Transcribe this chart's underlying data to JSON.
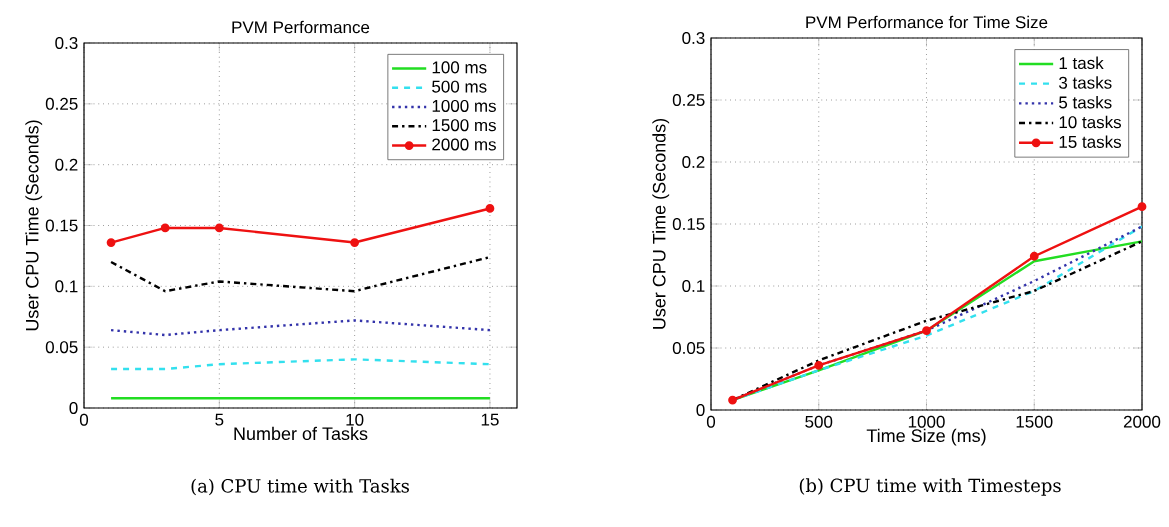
{
  "chart_data": [
    {
      "type": "line",
      "title": "PVM Performance",
      "xlabel": "Number of Tasks",
      "ylabel": "User CPU Time (Seconds)",
      "x": [
        1,
        3,
        5,
        10,
        15
      ],
      "xlim": [
        0,
        16
      ],
      "xticks": [
        0,
        5,
        10,
        15
      ],
      "ylim": [
        0,
        0.3
      ],
      "yticks": [
        0,
        0.05,
        0.1,
        0.15,
        0.2,
        0.25,
        0.3
      ],
      "grid": true,
      "legend": "top right",
      "annotations": [
        "(a) CPU time with Tasks"
      ],
      "series": [
        {
          "name": "100 ms",
          "color": "#22dd22",
          "line_style": "solid",
          "values": [
            0.008,
            0.008,
            0.008,
            0.008,
            0.008
          ]
        },
        {
          "name": "500 ms",
          "color": "#33e0ee",
          "line_style": "dashed",
          "values": [
            0.032,
            0.032,
            0.036,
            0.04,
            0.036
          ]
        },
        {
          "name": "1000 ms",
          "color": "#3333aa",
          "line_style": "dotted",
          "values": [
            0.064,
            0.06,
            0.064,
            0.072,
            0.064
          ]
        },
        {
          "name": "1500 ms",
          "color": "#000000",
          "line_style": "dashdot",
          "values": [
            0.12,
            0.096,
            0.104,
            0.096,
            0.124
          ]
        },
        {
          "name": "2000 ms",
          "color": "#ee1111",
          "line_style": "solid",
          "marker": "star",
          "values": [
            0.136,
            0.148,
            0.148,
            0.136,
            0.164
          ]
        }
      ]
    },
    {
      "type": "line",
      "title": "PVM Performance for Time Size",
      "xlabel": "Time Size (ms)",
      "ylabel": "User CPU Time (Seconds)",
      "x": [
        100,
        500,
        1000,
        1500,
        2000
      ],
      "xlim": [
        0,
        2000
      ],
      "xticks": [
        0,
        500,
        1000,
        1500,
        2000
      ],
      "ylim": [
        0,
        0.3
      ],
      "yticks": [
        0,
        0.05,
        0.1,
        0.15,
        0.2,
        0.25,
        0.3
      ],
      "grid": true,
      "legend": "top right",
      "annotations": [
        "(b) CPU time with Timesteps"
      ],
      "series": [
        {
          "name": "1 task",
          "color": "#22dd22",
          "line_style": "solid",
          "values": [
            0.008,
            0.032,
            0.064,
            0.12,
            0.136
          ]
        },
        {
          "name": "3 tasks",
          "color": "#33e0ee",
          "line_style": "dashed",
          "values": [
            0.008,
            0.032,
            0.06,
            0.096,
            0.148
          ]
        },
        {
          "name": "5 tasks",
          "color": "#3333aa",
          "line_style": "dotted",
          "values": [
            0.008,
            0.036,
            0.064,
            0.104,
            0.148
          ]
        },
        {
          "name": "10 tasks",
          "color": "#000000",
          "line_style": "dashdot",
          "values": [
            0.008,
            0.04,
            0.072,
            0.096,
            0.136
          ]
        },
        {
          "name": "15 tasks",
          "color": "#ee1111",
          "line_style": "solid",
          "marker": "star",
          "values": [
            0.008,
            0.036,
            0.064,
            0.124,
            0.164
          ]
        }
      ]
    }
  ]
}
